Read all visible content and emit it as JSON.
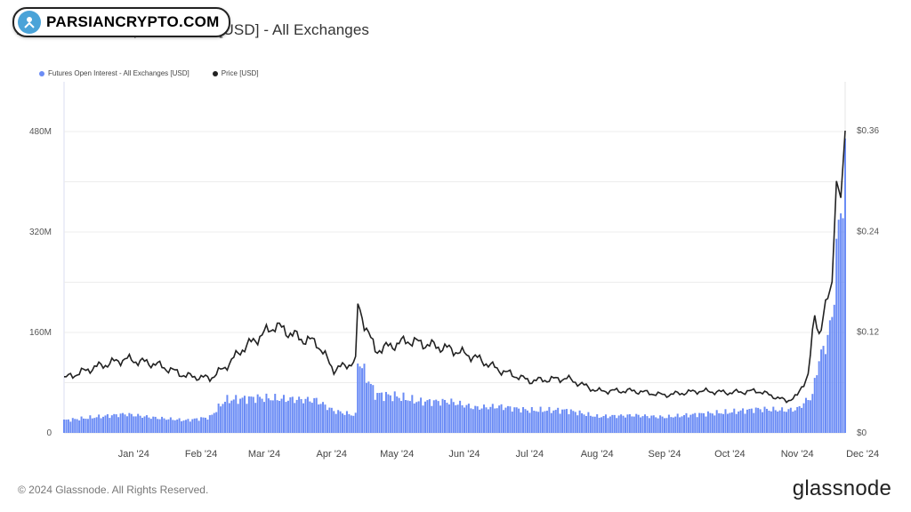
{
  "watermark": {
    "text": "PARSIANCRYPTO.COM"
  },
  "header": {
    "title": "PEAK: Futures Open Interest [USD] - All Exchanges"
  },
  "footer": {
    "copyright": "© 2024 Glassnode. All Rights Reserved.",
    "brand": "glassnode"
  },
  "colors": {
    "bars": "#6b8cf5",
    "price": "#222222",
    "grid": "#ececec"
  },
  "chart_data": {
    "type": "bar",
    "title": "PEAK: Futures Open Interest [USD] - All Exchanges",
    "legend": {
      "placement": "top-left"
    },
    "grid": true,
    "x_ticks": [
      "Jan '24",
      "Feb '24",
      "Mar '24",
      "Apr '24",
      "May '24",
      "Jun '24",
      "Jul '24",
      "Aug '24",
      "Sep '24",
      "Oct '24",
      "Nov '24",
      "Dec '24"
    ],
    "y_left": {
      "ticks": [
        "0",
        "160M",
        "320M",
        "480M"
      ],
      "ylim": [
        0,
        480
      ]
    },
    "y_right": {
      "ticks": [
        "$0",
        "$0.12",
        "$0.24",
        "$0.36"
      ],
      "ylim": [
        0,
        0.36
      ]
    },
    "series": [
      {
        "name": "Futures Open Interest - All Exchanges [USD]",
        "type": "bar",
        "axis": "left",
        "unit": "M USD",
        "points": [
          [
            "Dec 14",
            20
          ],
          [
            "Dec 28",
            25
          ],
          [
            "Jan 11",
            30
          ],
          [
            "Jan 25",
            24
          ],
          [
            "Feb 8",
            20
          ],
          [
            "Feb 19",
            25
          ],
          [
            "Feb 26",
            52
          ],
          [
            "Mar 11",
            56
          ],
          [
            "Mar 25",
            54
          ],
          [
            "Apr 8",
            52
          ],
          [
            "Apr 16",
            35
          ],
          [
            "Apr 26",
            28
          ],
          [
            "Apr 27",
            118
          ],
          [
            "May 5",
            62
          ],
          [
            "May 15",
            58
          ],
          [
            "May 25",
            50
          ],
          [
            "Jun 8",
            50
          ],
          [
            "Jun 20",
            40
          ],
          [
            "Jul 1",
            42
          ],
          [
            "Jul 15",
            36
          ],
          [
            "Aug 1",
            36
          ],
          [
            "Aug 15",
            26
          ],
          [
            "Sep 1",
            28
          ],
          [
            "Sep 15",
            25
          ],
          [
            "Oct 1",
            30
          ],
          [
            "Oct 15",
            33
          ],
          [
            "Oct 28",
            38
          ],
          [
            "Nov 10",
            36
          ],
          [
            "Nov 15",
            38
          ],
          [
            "Nov 22",
            60
          ],
          [
            "Nov 25",
            120
          ],
          [
            "Nov 27",
            130
          ],
          [
            "Dec 1",
            180
          ],
          [
            "Dec 3",
            290
          ],
          [
            "Dec 5",
            355
          ],
          [
            "Dec 7",
            420
          ]
        ]
      },
      {
        "name": "Price [USD]",
        "type": "line",
        "axis": "right",
        "points": [
          [
            "Dec 14",
            0.065
          ],
          [
            "Dec 28",
            0.078
          ],
          [
            "Jan 11",
            0.088
          ],
          [
            "Jan 25",
            0.082
          ],
          [
            "Feb 8",
            0.068
          ],
          [
            "Feb 19",
            0.065
          ],
          [
            "Feb 26",
            0.078
          ],
          [
            "Mar 5",
            0.1
          ],
          [
            "Mar 20",
            0.128
          ],
          [
            "Apr 1",
            0.112
          ],
          [
            "Apr 8",
            0.108
          ],
          [
            "Apr 16",
            0.075
          ],
          [
            "Apr 26",
            0.085
          ],
          [
            "Apr 27",
            0.152
          ],
          [
            "May 5",
            0.098
          ],
          [
            "May 20",
            0.11
          ],
          [
            "Jun 8",
            0.1
          ],
          [
            "Jun 20",
            0.09
          ],
          [
            "Jul 1",
            0.075
          ],
          [
            "Jul 15",
            0.062
          ],
          [
            "Aug 1",
            0.065
          ],
          [
            "Aug 15",
            0.05
          ],
          [
            "Sep 1",
            0.05
          ],
          [
            "Sep 15",
            0.045
          ],
          [
            "Oct 1",
            0.05
          ],
          [
            "Oct 15",
            0.048
          ],
          [
            "Oct 28",
            0.05
          ],
          [
            "Nov 10",
            0.038
          ],
          [
            "Nov 15",
            0.044
          ],
          [
            "Nov 20",
            0.07
          ],
          [
            "Nov 23",
            0.138
          ],
          [
            "Nov 25",
            0.12
          ],
          [
            "Nov 27",
            0.14
          ],
          [
            "Dec 1",
            0.18
          ],
          [
            "Dec 3",
            0.3
          ],
          [
            "Dec 5",
            0.28
          ],
          [
            "Dec 7",
            0.36
          ]
        ]
      }
    ]
  }
}
